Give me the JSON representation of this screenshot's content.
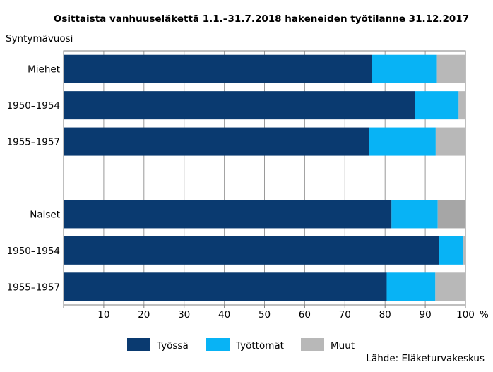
{
  "chart_data": {
    "type": "bar",
    "orientation": "horizontal",
    "stacked": true,
    "title": "Osittaista vanhuuseläkettä 1.1.–31.7.2018 hakeneiden työtilanne 31.12.2017",
    "ylabel": "Syntymävuosi",
    "xunit": "%",
    "xlim": [
      0,
      100
    ],
    "xticks": [
      10,
      20,
      30,
      40,
      50,
      60,
      70,
      80,
      90,
      100
    ],
    "grid": "vertical",
    "legend_position": "bottom",
    "categories": [
      "Miehet",
      "1950–1954",
      "1955–1957",
      "",
      "Naiset",
      "1950–1954",
      "1955–1957"
    ],
    "series": [
      {
        "name": "Työssä",
        "color": "#0a3a70",
        "values": [
          76.8,
          87.5,
          76.1,
          null,
          81.6,
          93.5,
          80.4
        ]
      },
      {
        "name": "Työttömät",
        "color": "#08b3f5",
        "values": [
          16.1,
          10.8,
          16.5,
          null,
          11.5,
          6.0,
          12.1
        ]
      },
      {
        "name": "Muut",
        "color": "#b8b8b8",
        "values": [
          7.1,
          1.7,
          7.4,
          null,
          6.9,
          0.5,
          7.5
        ]
      }
    ],
    "series_colors_alt": {
      "Muut_naiset": "#a6a6a6"
    },
    "source": "Lähde: Eläketurvakeskus"
  }
}
